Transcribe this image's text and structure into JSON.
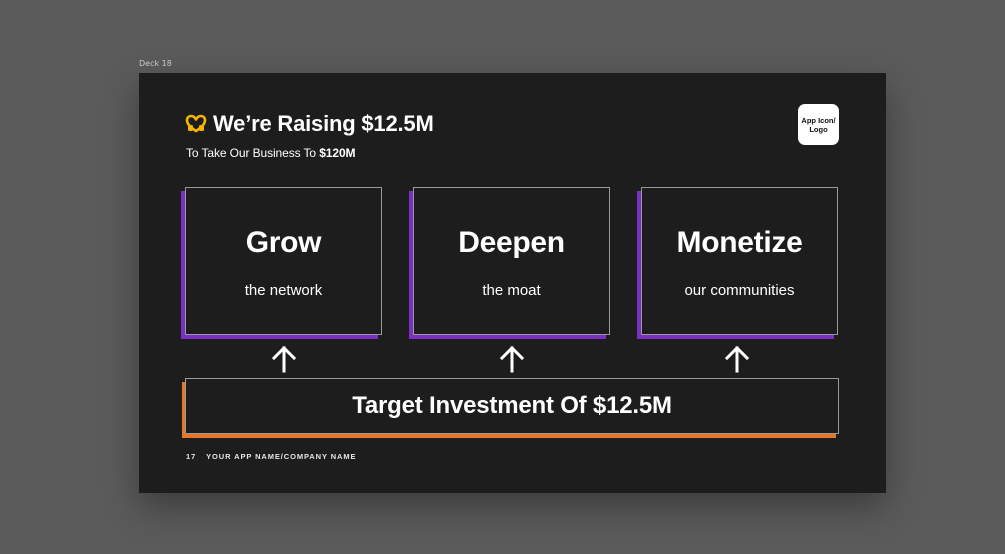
{
  "frame": {
    "label": "Deck 18"
  },
  "slide": {
    "title": "We’re Raising $12.5M",
    "subtitle_prefix": "To Take Our Business To ",
    "subtitle_bold": "$120M",
    "logo_line1": "App Icon/",
    "logo_line2": "Logo",
    "cards": [
      {
        "title": "Grow",
        "subtitle": "the network"
      },
      {
        "title": "Deepen",
        "subtitle": "the moat"
      },
      {
        "title": "Monetize",
        "subtitle": "our communities"
      }
    ],
    "target": "Target Investment Of $12.5M",
    "footer": {
      "page_number": "17",
      "company": "YOUR APP NAME/COMPANY NAME"
    }
  },
  "icons": {
    "title_icon": "hands-heart-icon",
    "arrow_icon": "arrow-up-icon"
  },
  "colors": {
    "canvas": "#5b5b5b",
    "slide_bg": "#1d1d1d",
    "card_accent": "#7c2fc4",
    "target_accent": "#e8752a",
    "emoji": "#f4b400"
  }
}
